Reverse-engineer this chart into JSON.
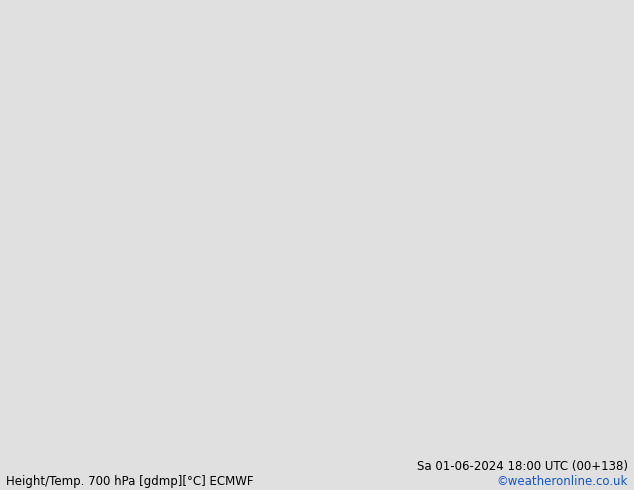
{
  "title_left": "Height/Temp. 700 hPa [gdmp][°C] ECMWF",
  "title_right": "Sa 01-06-2024 18:00 UTC (00+138)",
  "credit": "©weatheronline.co.uk",
  "bg_color": "#e0e0e0",
  "ocean_color": "#e0e0e0",
  "land_green": "#b8e8a0",
  "land_gray": "#c0c0c0",
  "border_color": "#aaaaaa",
  "figsize": [
    6.34,
    4.9
  ],
  "dpi": 100,
  "footer_fontsize": 8.5,
  "credit_color": "#1155cc",
  "text_color": "#000000",
  "lonmin": 60,
  "lonmax": 175,
  "latmin": -15,
  "latmax": 62
}
